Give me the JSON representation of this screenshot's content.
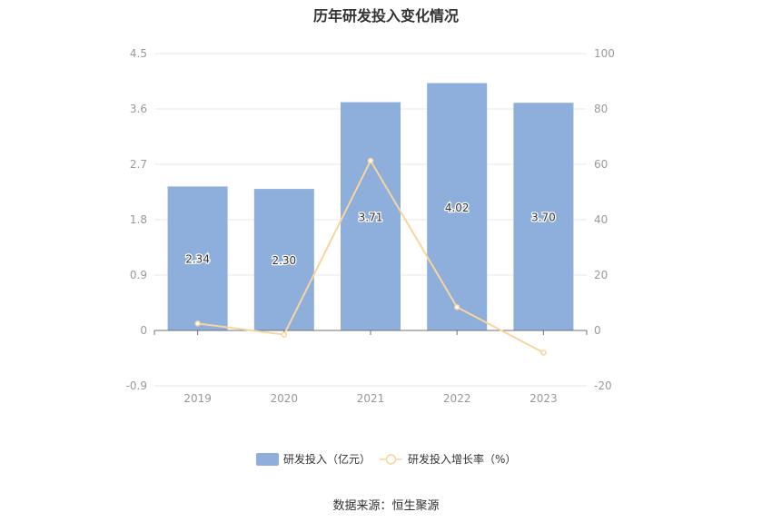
{
  "title": "历年研发投入变化情况",
  "source": "数据来源：恒生聚源",
  "colors": {
    "bar": "#8eaedb",
    "line": "#f8d59e",
    "axis_text": "#999999",
    "grid": "#e8e8e8"
  },
  "chart_data": {
    "type": "bar",
    "title": "历年研发投入变化情况",
    "categories": [
      "2019",
      "2020",
      "2021",
      "2022",
      "2023"
    ],
    "series": [
      {
        "name": "研发投入（亿元）",
        "type": "bar",
        "axis": "left",
        "values": [
          2.34,
          2.3,
          3.71,
          4.02,
          3.7
        ],
        "labels": [
          "2.34",
          "2.30",
          "3.71",
          "4.02",
          "3.70"
        ]
      },
      {
        "name": "研发投入增长率（%）",
        "type": "line",
        "axis": "right",
        "values": [
          2.5,
          -1.5,
          61.3,
          8.4,
          -8.0
        ]
      }
    ],
    "y_left": {
      "ticks": [
        "4.5",
        "3.6",
        "2.7",
        "1.8",
        "0.9",
        "0",
        "-0.9"
      ],
      "ylim": [
        -0.9,
        4.5
      ]
    },
    "y_right": {
      "ticks": [
        "100",
        "80",
        "60",
        "40",
        "20",
        "0",
        "-20"
      ],
      "ylim": [
        -20,
        100
      ]
    },
    "grid": true,
    "legend_position": "bottom"
  }
}
